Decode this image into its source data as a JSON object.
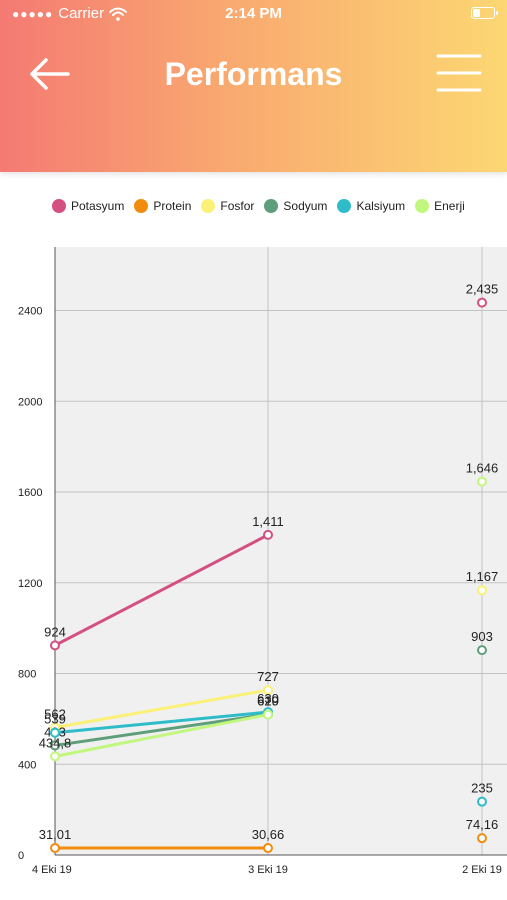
{
  "status_bar": {
    "carrier": "Carrier",
    "time": "2:14 PM"
  },
  "header": {
    "title": "Performans",
    "back_icon": "arrow-left-icon",
    "menu_icon": "hamburger-menu-icon",
    "gradient_colors": [
      "#f47a73",
      "#fcd773"
    ]
  },
  "chart_data": {
    "type": "line",
    "categories": [
      "4 Eki 19",
      "3 Eki 19",
      "2 Eki 19"
    ],
    "ylim": [
      0,
      2680
    ],
    "yticks": [
      0,
      400,
      800,
      1200,
      1600,
      2000,
      2400
    ],
    "grid": true,
    "legend_position": "top-left",
    "series": [
      {
        "name": "Potasyum",
        "color": "#d44f82",
        "values": [
          924,
          1411,
          2435
        ],
        "labels": [
          "924",
          "1,411",
          "2,435"
        ]
      },
      {
        "name": "Protein",
        "color": "#f28c0f",
        "values": [
          31.01,
          30.66,
          74.16
        ],
        "labels": [
          "31,01",
          "30,66",
          "74,16"
        ]
      },
      {
        "name": "Fosfor",
        "color": "#faf176",
        "values": [
          562,
          727,
          1167
        ],
        "labels": [
          "562",
          "727",
          "1,167"
        ]
      },
      {
        "name": "Sodyum",
        "color": "#5f9e7a",
        "values": [
          483,
          620,
          903
        ],
        "labels": [
          "483",
          "620",
          "903"
        ]
      },
      {
        "name": "Kalsiyum",
        "color": "#2fbcc9",
        "values": [
          539,
          630,
          235
        ],
        "labels": [
          "539",
          "630",
          "235"
        ]
      },
      {
        "name": "Enerji",
        "color": "#c1f77e",
        "values": [
          434.8,
          619,
          1646
        ],
        "labels": [
          "434,8",
          "619",
          "1,646"
        ]
      }
    ]
  }
}
